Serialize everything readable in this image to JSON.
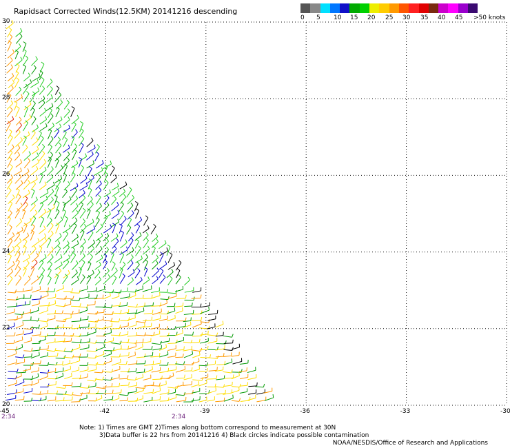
{
  "title": "Rapidsact Corrected Winds(12.5KM) 20141216 descending",
  "color_scale": {
    "labels": [
      "0",
      "5",
      "10",
      "15",
      "20",
      "25",
      "30",
      "35",
      "40",
      "45",
      ">50 knots"
    ],
    "colors": [
      "#555555",
      "#888888",
      "#00e0ff",
      "#0077ff",
      "#1010c8",
      "#00aa00",
      "#00d000",
      "#eeee00",
      "#ffcc00",
      "#ff9900",
      "#ff5500",
      "#ff2020",
      "#e00000",
      "#7a2a10",
      "#cc00cc",
      "#ff00ff",
      "#9900cc",
      "#3a0a70"
    ]
  },
  "map": {
    "lon_ticks": [
      "-45",
      "-42",
      "-39",
      "-36",
      "-33",
      "-30"
    ],
    "lat_ticks": [
      "30",
      "28",
      "26",
      "24",
      "22",
      "20"
    ],
    "lon_range": [
      -45,
      -30
    ],
    "lat_range": [
      20,
      30
    ],
    "grid": "dotted",
    "swath_edge": {
      "lon": [
        -45,
        -37
      ],
      "lat": [
        30,
        20
      ]
    }
  },
  "time_labels": [
    "2:34",
    "2:34"
  ],
  "notes": [
    "Note: 1) Times are GMT 2)Times along bottom correspond to measurement at 30N",
    "3)Data buffer is 22 hrs from 20141216 4) Black circles indicate possible contamination"
  ],
  "credit": "NOAA/NESDIS/Office of Research and Applications",
  "palette": {
    "orange": "#ff9900",
    "yellow": "#ffdd00",
    "lightgreen": "#22cc22",
    "green": "#009900",
    "blue": "#0000cc",
    "black": "#000000",
    "red": "#dd2200"
  }
}
